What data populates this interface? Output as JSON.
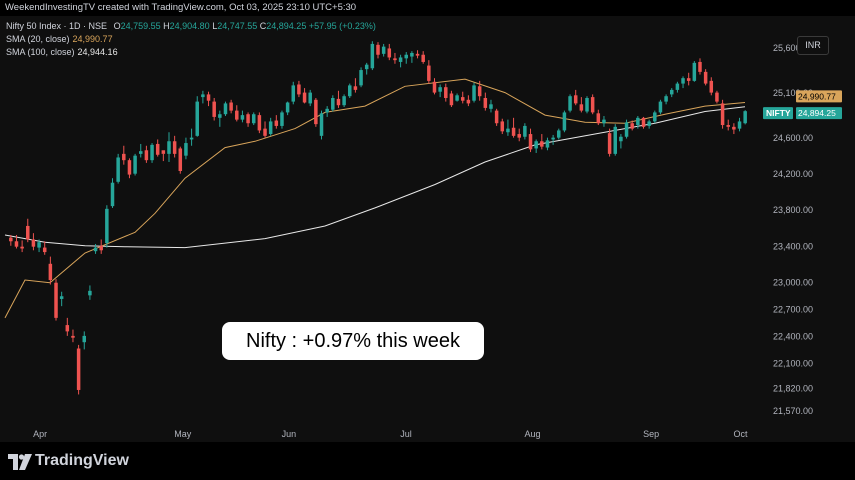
{
  "header": {
    "text": "WeekendInvestingTV created with TradingView.com, Oct 03, 2025 23:10 UTC+5:30"
  },
  "legend": {
    "symbol": "Nifty 50 Index · 1D · NSE",
    "o_label": "O",
    "o_value": "24,759.55",
    "h_label": "H",
    "h_value": "24,904.80",
    "l_label": "L",
    "l_value": "24,747.55",
    "c_label": "C",
    "c_value": "24,894.25",
    "change": "+57.95 (+0.23%)",
    "sma20_label": "SMA (20, close)",
    "sma20_value": "24,990.77",
    "sma100_label": "SMA (100, close)",
    "sma100_value": "24,944.16"
  },
  "currency": "INR",
  "callout": "Nifty : +0.97% this week",
  "footer": {
    "brand": "TradingView",
    "logo_icon": "tradingview-logo-icon"
  },
  "colors": {
    "up": "#26a69a",
    "down": "#ef5350",
    "sma20": "#d9a55b",
    "sma100": "#e8e8e8",
    "background": "#0f0f0f"
  },
  "chart_data": {
    "type": "candlestick",
    "symbol": "NIFTY",
    "ylim": [
      21400,
      25950
    ],
    "y_ticks": [
      "25,600.00",
      "25,100.00",
      "24,600.00",
      "24,200.00",
      "23,800.00",
      "23,400.00",
      "23,000.00",
      "22,700.00",
      "22,400.00",
      "22,100.00",
      "21,820.00",
      "21,570.00"
    ],
    "x_ticks": [
      "Apr",
      "May",
      "Jun",
      "Jul",
      "Aug",
      "Sep",
      "Oct"
    ],
    "price_labels": [
      {
        "label": "NIFTY",
        "value": 24894.25,
        "text": "24,894.25",
        "color": "#26a69a"
      },
      {
        "label": "",
        "value": 24990.77,
        "text": "24,990.77",
        "color": "#d9a55b"
      }
    ],
    "candles": [
      [
        23490,
        23520,
        23400,
        23450
      ],
      [
        23450,
        23520,
        23370,
        23390
      ],
      [
        23390,
        23460,
        23330,
        23370
      ],
      [
        23620,
        23700,
        23440,
        23470
      ],
      [
        23470,
        23540,
        23350,
        23390
      ],
      [
        23380,
        23470,
        23330,
        23440
      ],
      [
        23380,
        23450,
        23300,
        23330
      ],
      [
        23200,
        23280,
        22970,
        23020
      ],
      [
        22990,
        23030,
        22570,
        22600
      ],
      [
        22810,
        22890,
        22730,
        22840
      ],
      [
        22520,
        22600,
        22400,
        22450
      ],
      [
        22400,
        22470,
        22330,
        22380
      ],
      [
        22260,
        22300,
        21750,
        21800
      ],
      [
        22330,
        22450,
        22250,
        22400
      ],
      [
        22850,
        22960,
        22800,
        22900
      ],
      [
        23340,
        23420,
        23310,
        23380
      ],
      [
        23400,
        23470,
        23310,
        23350
      ],
      [
        23430,
        23850,
        23380,
        23810
      ],
      [
        23840,
        24150,
        23820,
        24100
      ],
      [
        24110,
        24420,
        24090,
        24380
      ],
      [
        24420,
        24510,
        24300,
        24350
      ],
      [
        24350,
        24370,
        24150,
        24190
      ],
      [
        24200,
        24420,
        24180,
        24400
      ],
      [
        24420,
        24530,
        24380,
        24450
      ],
      [
        24460,
        24510,
        24320,
        24350
      ],
      [
        24350,
        24540,
        24320,
        24520
      ],
      [
        24530,
        24580,
        24390,
        24410
      ],
      [
        24460,
        24420,
        24340,
        24420
      ],
      [
        24420,
        24660,
        24330,
        24560
      ],
      [
        24560,
        24620,
        24380,
        24420
      ],
      [
        24480,
        24500,
        24200,
        24230
      ],
      [
        24400,
        24600,
        24360,
        24540
      ],
      [
        24580,
        24700,
        24510,
        24600
      ],
      [
        24620,
        25060,
        24610,
        25000
      ],
      [
        25050,
        25120,
        24980,
        25080
      ],
      [
        25080,
        25110,
        24950,
        25010
      ],
      [
        25000,
        25040,
        24790,
        24830
      ],
      [
        24820,
        24900,
        24720,
        24860
      ],
      [
        24860,
        25000,
        24840,
        24980
      ],
      [
        24990,
        25020,
        24870,
        24900
      ],
      [
        24900,
        24960,
        24780,
        24800
      ],
      [
        24800,
        24900,
        24770,
        24850
      ],
      [
        24860,
        24880,
        24720,
        24760
      ],
      [
        24760,
        24880,
        24740,
        24860
      ],
      [
        24850,
        24880,
        24650,
        24680
      ],
      [
        24700,
        24780,
        24600,
        24620
      ],
      [
        24640,
        24820,
        24620,
        24780
      ],
      [
        24790,
        24850,
        24700,
        24730
      ],
      [
        24730,
        24900,
        24700,
        24880
      ],
      [
        24880,
        25000,
        24850,
        24990
      ],
      [
        25000,
        25220,
        24970,
        25180
      ],
      [
        25190,
        25230,
        25050,
        25080
      ],
      [
        25100,
        25150,
        24980,
        24990
      ],
      [
        24980,
        25130,
        24950,
        25100
      ],
      [
        25020,
        25040,
        24720,
        24750
      ],
      [
        24620,
        24900,
        24580,
        24870
      ],
      [
        24880,
        24950,
        24830,
        24920
      ],
      [
        24910,
        25070,
        24890,
        25040
      ],
      [
        25030,
        25120,
        24930,
        24960
      ],
      [
        24960,
        25080,
        24940,
        25060
      ],
      [
        25060,
        25200,
        25040,
        25180
      ],
      [
        25170,
        25260,
        25100,
        25130
      ],
      [
        25180,
        25380,
        25160,
        25350
      ],
      [
        25360,
        25430,
        25300,
        25410
      ],
      [
        25370,
        25670,
        25350,
        25640
      ],
      [
        25630,
        25660,
        25480,
        25520
      ],
      [
        25530,
        25640,
        25500,
        25610
      ],
      [
        25590,
        25640,
        25460,
        25490
      ],
      [
        25480,
        25540,
        25420,
        25460
      ],
      [
        25440,
        25520,
        25380,
        25490
      ],
      [
        25480,
        25550,
        25420,
        25520
      ],
      [
        25500,
        25560,
        25430,
        25540
      ],
      [
        25530,
        25570,
        25480,
        25510
      ],
      [
        25520,
        25560,
        25420,
        25440
      ],
      [
        25400,
        25460,
        25200,
        25230
      ],
      [
        25220,
        25260,
        25080,
        25100
      ],
      [
        25110,
        25190,
        25050,
        25160
      ],
      [
        25160,
        25200,
        25000,
        25040
      ],
      [
        25090,
        25120,
        24940,
        24960
      ],
      [
        25010,
        25090,
        25000,
        25070
      ],
      [
        25050,
        25110,
        24980,
        25010
      ],
      [
        25020,
        25070,
        24950,
        24980
      ],
      [
        25010,
        25210,
        24990,
        25180
      ],
      [
        25170,
        25230,
        25010,
        25060
      ],
      [
        25040,
        25100,
        24900,
        24930
      ],
      [
        24920,
        25020,
        24880,
        24970
      ],
      [
        24900,
        24920,
        24730,
        24760
      ],
      [
        24780,
        24810,
        24640,
        24670
      ],
      [
        24660,
        24800,
        24620,
        24700
      ],
      [
        24710,
        24820,
        24600,
        24620
      ],
      [
        24640,
        24700,
        24560,
        24600
      ],
      [
        24610,
        24760,
        24580,
        24730
      ],
      [
        24640,
        24700,
        24440,
        24470
      ],
      [
        24480,
        24580,
        24430,
        24560
      ],
      [
        24560,
        24640,
        24470,
        24500
      ],
      [
        24490,
        24600,
        24460,
        24570
      ],
      [
        24580,
        24630,
        24520,
        24600
      ],
      [
        24600,
        24700,
        24580,
        24680
      ],
      [
        24680,
        24900,
        24660,
        24880
      ],
      [
        24900,
        25080,
        24880,
        25060
      ],
      [
        25070,
        25130,
        24960,
        24980
      ],
      [
        24970,
        25050,
        24880,
        24900
      ],
      [
        24890,
        25060,
        24870,
        25040
      ],
      [
        25050,
        25080,
        24860,
        24880
      ],
      [
        24870,
        24910,
        24740,
        24760
      ],
      [
        24760,
        24840,
        24720,
        24800
      ],
      [
        24650,
        24700,
        24390,
        24420
      ],
      [
        24420,
        24750,
        24400,
        24720
      ],
      [
        24560,
        24640,
        24480,
        24610
      ],
      [
        24610,
        24800,
        24590,
        24770
      ],
      [
        24760,
        24790,
        24680,
        24700
      ],
      [
        24740,
        24840,
        24700,
        24820
      ],
      [
        24820,
        24830,
        24700,
        24720
      ],
      [
        24730,
        24800,
        24700,
        24780
      ],
      [
        24780,
        24900,
        24760,
        24880
      ],
      [
        24880,
        25020,
        24860,
        25000
      ],
      [
        25000,
        25080,
        24970,
        25060
      ],
      [
        25080,
        25150,
        25050,
        25130
      ],
      [
        25130,
        25220,
        25100,
        25200
      ],
      [
        25200,
        25280,
        25150,
        25260
      ],
      [
        25260,
        25320,
        25180,
        25230
      ],
      [
        25230,
        25450,
        25220,
        25430
      ],
      [
        25440,
        25480,
        25300,
        25330
      ],
      [
        25330,
        25360,
        25180,
        25200
      ],
      [
        25230,
        25270,
        25070,
        25100
      ],
      [
        25100,
        25120,
        24980,
        25000
      ],
      [
        24980,
        25020,
        24700,
        24740
      ],
      [
        24740,
        24800,
        24680,
        24720
      ],
      [
        24720,
        24760,
        24640,
        24690
      ],
      [
        24700,
        24820,
        24670,
        24780
      ],
      [
        24760,
        24905,
        24747,
        24894
      ]
    ],
    "sma20": [
      [
        0,
        22600
      ],
      [
        20,
        23020
      ],
      [
        45,
        22990
      ],
      [
        80,
        23320
      ],
      [
        130,
        23550
      ],
      [
        150,
        23760
      ],
      [
        180,
        24150
      ],
      [
        220,
        24490
      ],
      [
        250,
        24560
      ],
      [
        290,
        24700
      ],
      [
        320,
        24880
      ],
      [
        360,
        24950
      ],
      [
        400,
        25170
      ],
      [
        460,
        25250
      ],
      [
        500,
        25100
      ],
      [
        540,
        24850
      ],
      [
        580,
        24770
      ],
      [
        620,
        24760
      ],
      [
        660,
        24860
      ],
      [
        700,
        24950
      ],
      [
        740,
        24990
      ]
    ],
    "sma100": [
      [
        0,
        23520
      ],
      [
        40,
        23440
      ],
      [
        80,
        23400
      ],
      [
        120,
        23390
      ],
      [
        180,
        23380
      ],
      [
        260,
        23480
      ],
      [
        320,
        23620
      ],
      [
        370,
        23820
      ],
      [
        430,
        24080
      ],
      [
        480,
        24330
      ],
      [
        530,
        24520
      ],
      [
        590,
        24640
      ],
      [
        650,
        24760
      ],
      [
        700,
        24890
      ],
      [
        740,
        24944
      ]
    ]
  }
}
